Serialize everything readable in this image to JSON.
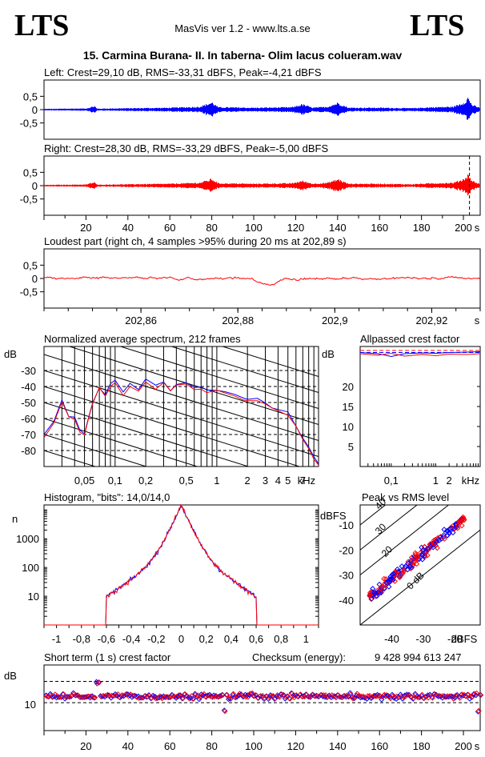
{
  "header": {
    "logo_left": "LTS",
    "logo_right": "LTS",
    "app_title": "MasVis ver 1.2 - www.lts.a.se",
    "file_title": "15. Carmina Burana- II. In taberna- Olim lacus colueram.wav"
  },
  "colors": {
    "left": "#0000ff",
    "right": "#ff0000",
    "axis": "#000000"
  },
  "chart_data": [
    {
      "id": "left",
      "type": "line",
      "title": "Left: Crest=29,10 dB, RMS=-33,31 dBFS, Peak=-4,21 dBFS",
      "yticks": [
        "0,5",
        "0",
        "-0,5"
      ],
      "ylim": [
        -1,
        1
      ],
      "xlim": [
        0,
        208
      ],
      "envelope": [
        [
          0,
          0.03
        ],
        [
          10,
          0.04
        ],
        [
          20,
          0.05
        ],
        [
          24,
          0.15
        ],
        [
          25,
          0.04
        ],
        [
          40,
          0.06
        ],
        [
          60,
          0.08
        ],
        [
          74,
          0.12
        ],
        [
          80,
          0.3
        ],
        [
          83,
          0.1
        ],
        [
          100,
          0.08
        ],
        [
          118,
          0.1
        ],
        [
          123,
          0.22
        ],
        [
          128,
          0.08
        ],
        [
          135,
          0.12
        ],
        [
          140,
          0.28
        ],
        [
          145,
          0.08
        ],
        [
          160,
          0.08
        ],
        [
          175,
          0.06
        ],
        [
          185,
          0.1
        ],
        [
          195,
          0.12
        ],
        [
          200,
          0.3
        ],
        [
          202,
          0.5
        ],
        [
          204,
          0.2
        ],
        [
          208,
          0.06
        ]
      ]
    },
    {
      "id": "right",
      "type": "line",
      "title": "Right: Crest=28,30 dB, RMS=-33,29 dBFS, Peak=-5,00 dBFS",
      "yticks": [
        "0,5",
        "0",
        "-0,5"
      ],
      "xticks": [
        "20",
        "40",
        "60",
        "80",
        "100",
        "120",
        "140",
        "160",
        "180",
        "200"
      ],
      "xunit": "s",
      "ylim": [
        -1,
        1
      ],
      "xlim": [
        0,
        208
      ],
      "marker_x": 202.89,
      "envelope": [
        [
          0,
          0.03
        ],
        [
          10,
          0.04
        ],
        [
          20,
          0.05
        ],
        [
          24,
          0.15
        ],
        [
          25,
          0.04
        ],
        [
          40,
          0.06
        ],
        [
          60,
          0.08
        ],
        [
          74,
          0.12
        ],
        [
          80,
          0.28
        ],
        [
          83,
          0.1
        ],
        [
          100,
          0.08
        ],
        [
          118,
          0.1
        ],
        [
          123,
          0.2
        ],
        [
          128,
          0.08
        ],
        [
          135,
          0.12
        ],
        [
          140,
          0.27
        ],
        [
          145,
          0.08
        ],
        [
          160,
          0.08
        ],
        [
          175,
          0.06
        ],
        [
          185,
          0.1
        ],
        [
          195,
          0.12
        ],
        [
          200,
          0.28
        ],
        [
          202,
          0.45
        ],
        [
          204,
          0.2
        ],
        [
          208,
          0.06
        ]
      ]
    },
    {
      "id": "loudest",
      "type": "line",
      "title": "Loudest part (right ch, 4 samples >95% during 20 ms at 202,89 s)",
      "yticks": [
        "0,5",
        "0",
        "-0,5"
      ],
      "xticks": [
        "202,86",
        "202,88",
        "202,9",
        "202,92"
      ],
      "xunit": "s",
      "xlim": [
        202.84,
        202.93
      ],
      "ylim": [
        -1,
        1
      ]
    },
    {
      "id": "spectrum",
      "type": "line",
      "title": "Normalized average spectrum, 212 frames",
      "ylabel": "dB",
      "yticks": [
        "-30",
        "-40",
        "-50",
        "-60",
        "-70",
        "-80"
      ],
      "xticks": [
        "0,05",
        "0,1",
        "0,2",
        "0,5",
        "1",
        "2",
        "3",
        "4",
        "5",
        "7"
      ],
      "xunit": "kHz",
      "ylim": [
        -90,
        -15
      ],
      "xlim_khz": [
        0.02,
        10
      ],
      "series": [
        {
          "points": [
            [
              0.02,
              -70
            ],
            [
              0.025,
              -62
            ],
            [
              0.03,
              -48
            ],
            [
              0.035,
              -58
            ],
            [
              0.04,
              -60
            ],
            [
              0.045,
              -68
            ],
            [
              0.05,
              -69
            ],
            [
              0.055,
              -60
            ],
            [
              0.06,
              -50
            ],
            [
              0.07,
              -40
            ],
            [
              0.08,
              -45
            ],
            [
              0.09,
              -38
            ],
            [
              0.1,
              -36
            ],
            [
              0.12,
              -44
            ],
            [
              0.14,
              -38
            ],
            [
              0.17,
              -42
            ],
            [
              0.2,
              -36
            ],
            [
              0.25,
              -40
            ],
            [
              0.3,
              -37
            ],
            [
              0.35,
              -42
            ],
            [
              0.4,
              -38
            ],
            [
              0.5,
              -38
            ],
            [
              0.6,
              -40
            ],
            [
              0.7,
              -40
            ],
            [
              0.8,
              -42
            ],
            [
              1,
              -42
            ],
            [
              1.2,
              -44
            ],
            [
              1.5,
              -45
            ],
            [
              1.8,
              -47
            ],
            [
              2,
              -48
            ],
            [
              2.5,
              -48
            ],
            [
              3,
              -50
            ],
            [
              3.5,
              -53
            ],
            [
              4,
              -54
            ],
            [
              5,
              -57
            ],
            [
              6,
              -64
            ],
            [
              7,
              -72
            ],
            [
              8,
              -78
            ],
            [
              9,
              -84
            ],
            [
              10,
              -88
            ]
          ]
        },
        {
          "points": [
            [
              0.02,
              -72
            ],
            [
              0.025,
              -64
            ],
            [
              0.03,
              -50
            ],
            [
              0.035,
              -59
            ],
            [
              0.04,
              -61
            ],
            [
              0.045,
              -69
            ],
            [
              0.05,
              -70
            ],
            [
              0.055,
              -61
            ],
            [
              0.06,
              -51
            ],
            [
              0.07,
              -41
            ],
            [
              0.08,
              -46
            ],
            [
              0.09,
              -39
            ],
            [
              0.1,
              -37
            ],
            [
              0.12,
              -45
            ],
            [
              0.14,
              -39
            ],
            [
              0.17,
              -43
            ],
            [
              0.2,
              -37
            ],
            [
              0.25,
              -41
            ],
            [
              0.3,
              -38
            ],
            [
              0.35,
              -43
            ],
            [
              0.4,
              -39
            ],
            [
              0.5,
              -39
            ],
            [
              0.6,
              -41
            ],
            [
              0.7,
              -41
            ],
            [
              0.8,
              -43
            ],
            [
              1,
              -43
            ],
            [
              1.2,
              -45
            ],
            [
              1.5,
              -46
            ],
            [
              1.8,
              -48
            ],
            [
              2,
              -49
            ],
            [
              2.5,
              -49
            ],
            [
              3,
              -51
            ],
            [
              3.5,
              -54
            ],
            [
              4,
              -55
            ],
            [
              5,
              -58
            ],
            [
              6,
              -65
            ],
            [
              7,
              -73
            ],
            [
              8,
              -79
            ],
            [
              9,
              -85
            ],
            [
              10,
              -89
            ]
          ]
        }
      ]
    },
    {
      "id": "allpassed",
      "type": "line",
      "title": "Allpassed crest factor",
      "ylabel": "dB",
      "yticks": [
        "20",
        "15",
        "10",
        "5"
      ],
      "xticks": [
        "0,1",
        "1",
        "2"
      ],
      "xunit": "kHz",
      "ylim": [
        0,
        30
      ],
      "series": [
        {
          "points": [
            [
              0.02,
              28.5
            ],
            [
              0.05,
              28.2
            ],
            [
              0.1,
              27.5
            ],
            [
              0.2,
              28.2
            ],
            [
              0.5,
              28.4
            ],
            [
              1,
              28.3
            ],
            [
              2,
              28.5
            ],
            [
              5,
              28.6
            ],
            [
              10,
              28.7
            ]
          ]
        },
        {
          "points": [
            [
              0.02,
              28.2
            ],
            [
              0.05,
              27.8
            ],
            [
              0.1,
              28.3
            ],
            [
              0.2,
              27.6
            ],
            [
              0.5,
              28.0
            ],
            [
              1,
              27.7
            ],
            [
              2,
              28.1
            ],
            [
              5,
              28.0
            ],
            [
              10,
              28.2
            ]
          ]
        }
      ]
    },
    {
      "id": "histogram",
      "type": "line",
      "title": "Histogram, \"bits\": 14,0/14,0",
      "ylabel": "n",
      "yticks": [
        "1000",
        "100",
        "10"
      ],
      "xticks": [
        "-1",
        "-0,8",
        "-0,6",
        "-0,4",
        "-0,2",
        "0",
        "0,2",
        "0,4",
        "0,6",
        "0,8",
        "1"
      ],
      "xlim": [
        -1.1,
        1.1
      ]
    },
    {
      "id": "peak_rms",
      "type": "scatter",
      "title": "Peak vs RMS level",
      "ylabel": "dBFS",
      "xlabel": "dBFS",
      "yticks": [
        "-10",
        "-20",
        "-30",
        "-40"
      ],
      "xticks": [
        "-40",
        "-30",
        "-20"
      ],
      "diag_labels": [
        "40",
        "30",
        "20",
        "0 dB"
      ],
      "xlim": [
        -50,
        -12
      ],
      "ylim": [
        -50,
        -2
      ]
    },
    {
      "id": "short_term",
      "type": "scatter",
      "title": "Short term (1 s) crest factor",
      "ylabel": "dB",
      "yticks": [
        "10"
      ],
      "xticks": [
        "20",
        "40",
        "60",
        "80",
        "100",
        "120",
        "140",
        "160",
        "180",
        "200"
      ],
      "xunit": "s",
      "xlim": [
        0,
        208
      ]
    }
  ],
  "checksum": {
    "label": "Checksum (energy):",
    "value": "9 428 994 613 247"
  }
}
